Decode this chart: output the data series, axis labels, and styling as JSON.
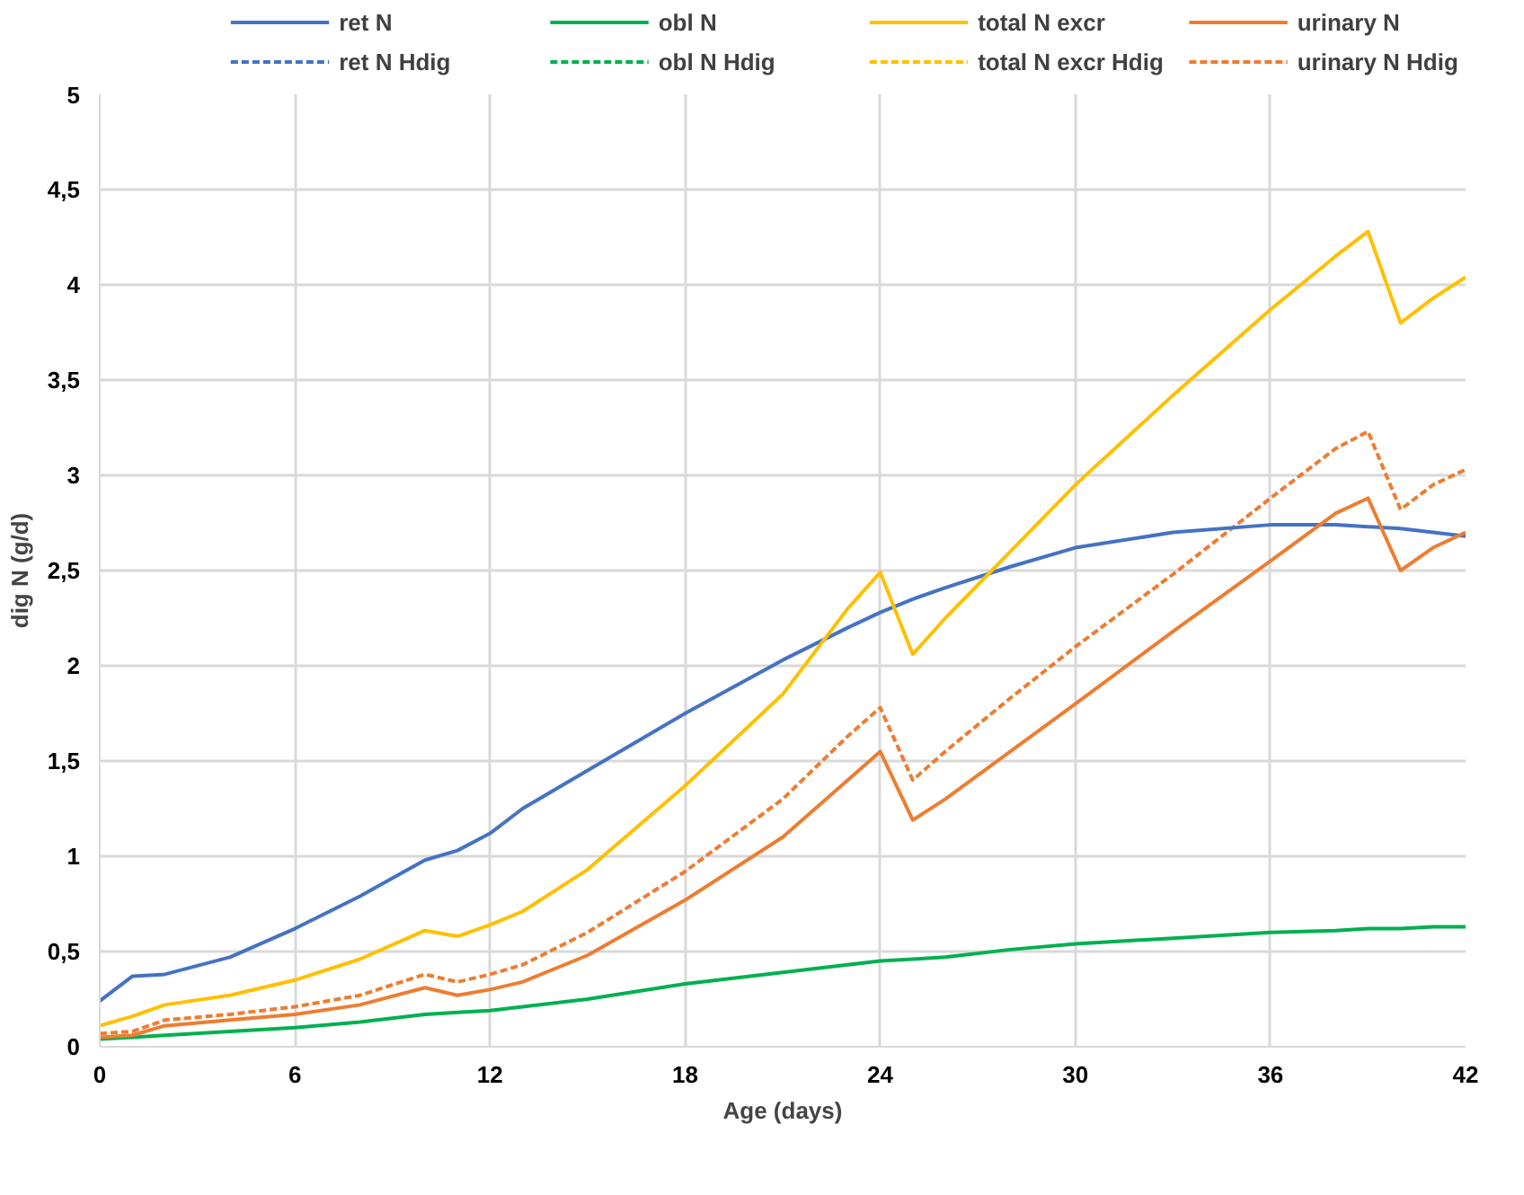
{
  "chart_data": {
    "type": "line",
    "xlabel": "Age (days)",
    "ylabel": "dig N (g/d)",
    "x": [
      0,
      1,
      2,
      4,
      6,
      8,
      10,
      11,
      12,
      13,
      15,
      18,
      21,
      23,
      24,
      25,
      26,
      28,
      30,
      33,
      36,
      38,
      39,
      40,
      41,
      42
    ],
    "xlim": [
      0,
      42
    ],
    "xticks": [
      0,
      6,
      12,
      18,
      24,
      30,
      36,
      42
    ],
    "ylim": [
      0,
      5
    ],
    "yticks": [
      0,
      {
        "value": 0.5,
        "label": "0,5"
      },
      1,
      {
        "value": 1.5,
        "label": "1,5"
      },
      2,
      {
        "value": 2.5,
        "label": "2,5"
      },
      3,
      {
        "value": 3.5,
        "label": "3,5"
      },
      4,
      {
        "value": 4.5,
        "label": "4,5"
      },
      5
    ],
    "grid": true,
    "legend": "top",
    "marker": "none",
    "series": [
      {
        "name": "ret N",
        "color": "#4472c4",
        "line_style": "solid",
        "values": [
          0.24,
          0.37,
          0.38,
          0.47,
          0.62,
          0.79,
          0.98,
          1.03,
          1.12,
          1.25,
          1.45,
          1.75,
          2.03,
          2.2,
          2.28,
          2.35,
          2.41,
          2.52,
          2.62,
          2.7,
          2.74,
          2.74,
          2.73,
          2.72,
          2.7,
          2.68
        ]
      },
      {
        "name": "ret N Hdig",
        "color": "#4472c4",
        "line_style": "dashed",
        "values": [
          null,
          null,
          null,
          null,
          null,
          null,
          null,
          null,
          null,
          null,
          null,
          null,
          null,
          null,
          null,
          null,
          null,
          null,
          null,
          null,
          null,
          null,
          null,
          null,
          null,
          null
        ]
      },
      {
        "name": "obl N",
        "color": "#00b050",
        "line_style": "solid",
        "values": [
          0.04,
          0.05,
          0.06,
          0.08,
          0.1,
          0.13,
          0.17,
          0.18,
          0.19,
          0.21,
          0.25,
          0.33,
          0.39,
          0.43,
          0.45,
          0.46,
          0.47,
          0.51,
          0.54,
          0.57,
          0.6,
          0.61,
          0.62,
          0.62,
          0.63,
          0.63
        ]
      },
      {
        "name": "obl N Hdig",
        "color": "#00b050",
        "line_style": "dashed",
        "values": [
          null,
          null,
          null,
          null,
          null,
          null,
          null,
          null,
          null,
          null,
          null,
          null,
          null,
          null,
          null,
          null,
          null,
          null,
          null,
          null,
          null,
          null,
          null,
          null,
          null,
          null
        ]
      },
      {
        "name": "total N excr",
        "color": "#ffc000",
        "line_style": "solid",
        "values": [
          0.11,
          0.16,
          0.22,
          0.27,
          0.35,
          0.46,
          0.61,
          0.58,
          0.64,
          0.71,
          0.93,
          1.37,
          1.85,
          2.3,
          2.49,
          2.06,
          2.25,
          2.6,
          2.95,
          3.42,
          3.87,
          4.15,
          4.28,
          3.8,
          3.93,
          4.04
        ]
      },
      {
        "name": "total N excr Hdig",
        "color": "#ffc000",
        "line_style": "dashed",
        "values": [
          null,
          null,
          null,
          null,
          null,
          null,
          null,
          null,
          null,
          null,
          null,
          null,
          null,
          null,
          null,
          null,
          null,
          null,
          null,
          null,
          null,
          null,
          null,
          null,
          null,
          null
        ]
      },
      {
        "name": "urinary N",
        "color": "#ed7d31",
        "line_style": "solid",
        "values": [
          0.05,
          0.06,
          0.11,
          0.14,
          0.17,
          0.22,
          0.31,
          0.27,
          0.3,
          0.34,
          0.48,
          0.77,
          1.1,
          1.4,
          1.55,
          1.19,
          1.3,
          1.55,
          1.8,
          2.18,
          2.55,
          2.8,
          2.88,
          2.5,
          2.62,
          2.7
        ]
      },
      {
        "name": "urinary N Hdig",
        "color": "#ed7d31",
        "line_style": "dashed",
        "values": [
          0.07,
          0.08,
          0.14,
          0.17,
          0.21,
          0.27,
          0.38,
          0.34,
          0.38,
          0.43,
          0.6,
          0.92,
          1.3,
          1.63,
          1.78,
          1.4,
          1.55,
          1.83,
          2.1,
          2.48,
          2.88,
          3.14,
          3.23,
          2.82,
          2.95,
          3.03
        ]
      }
    ]
  }
}
